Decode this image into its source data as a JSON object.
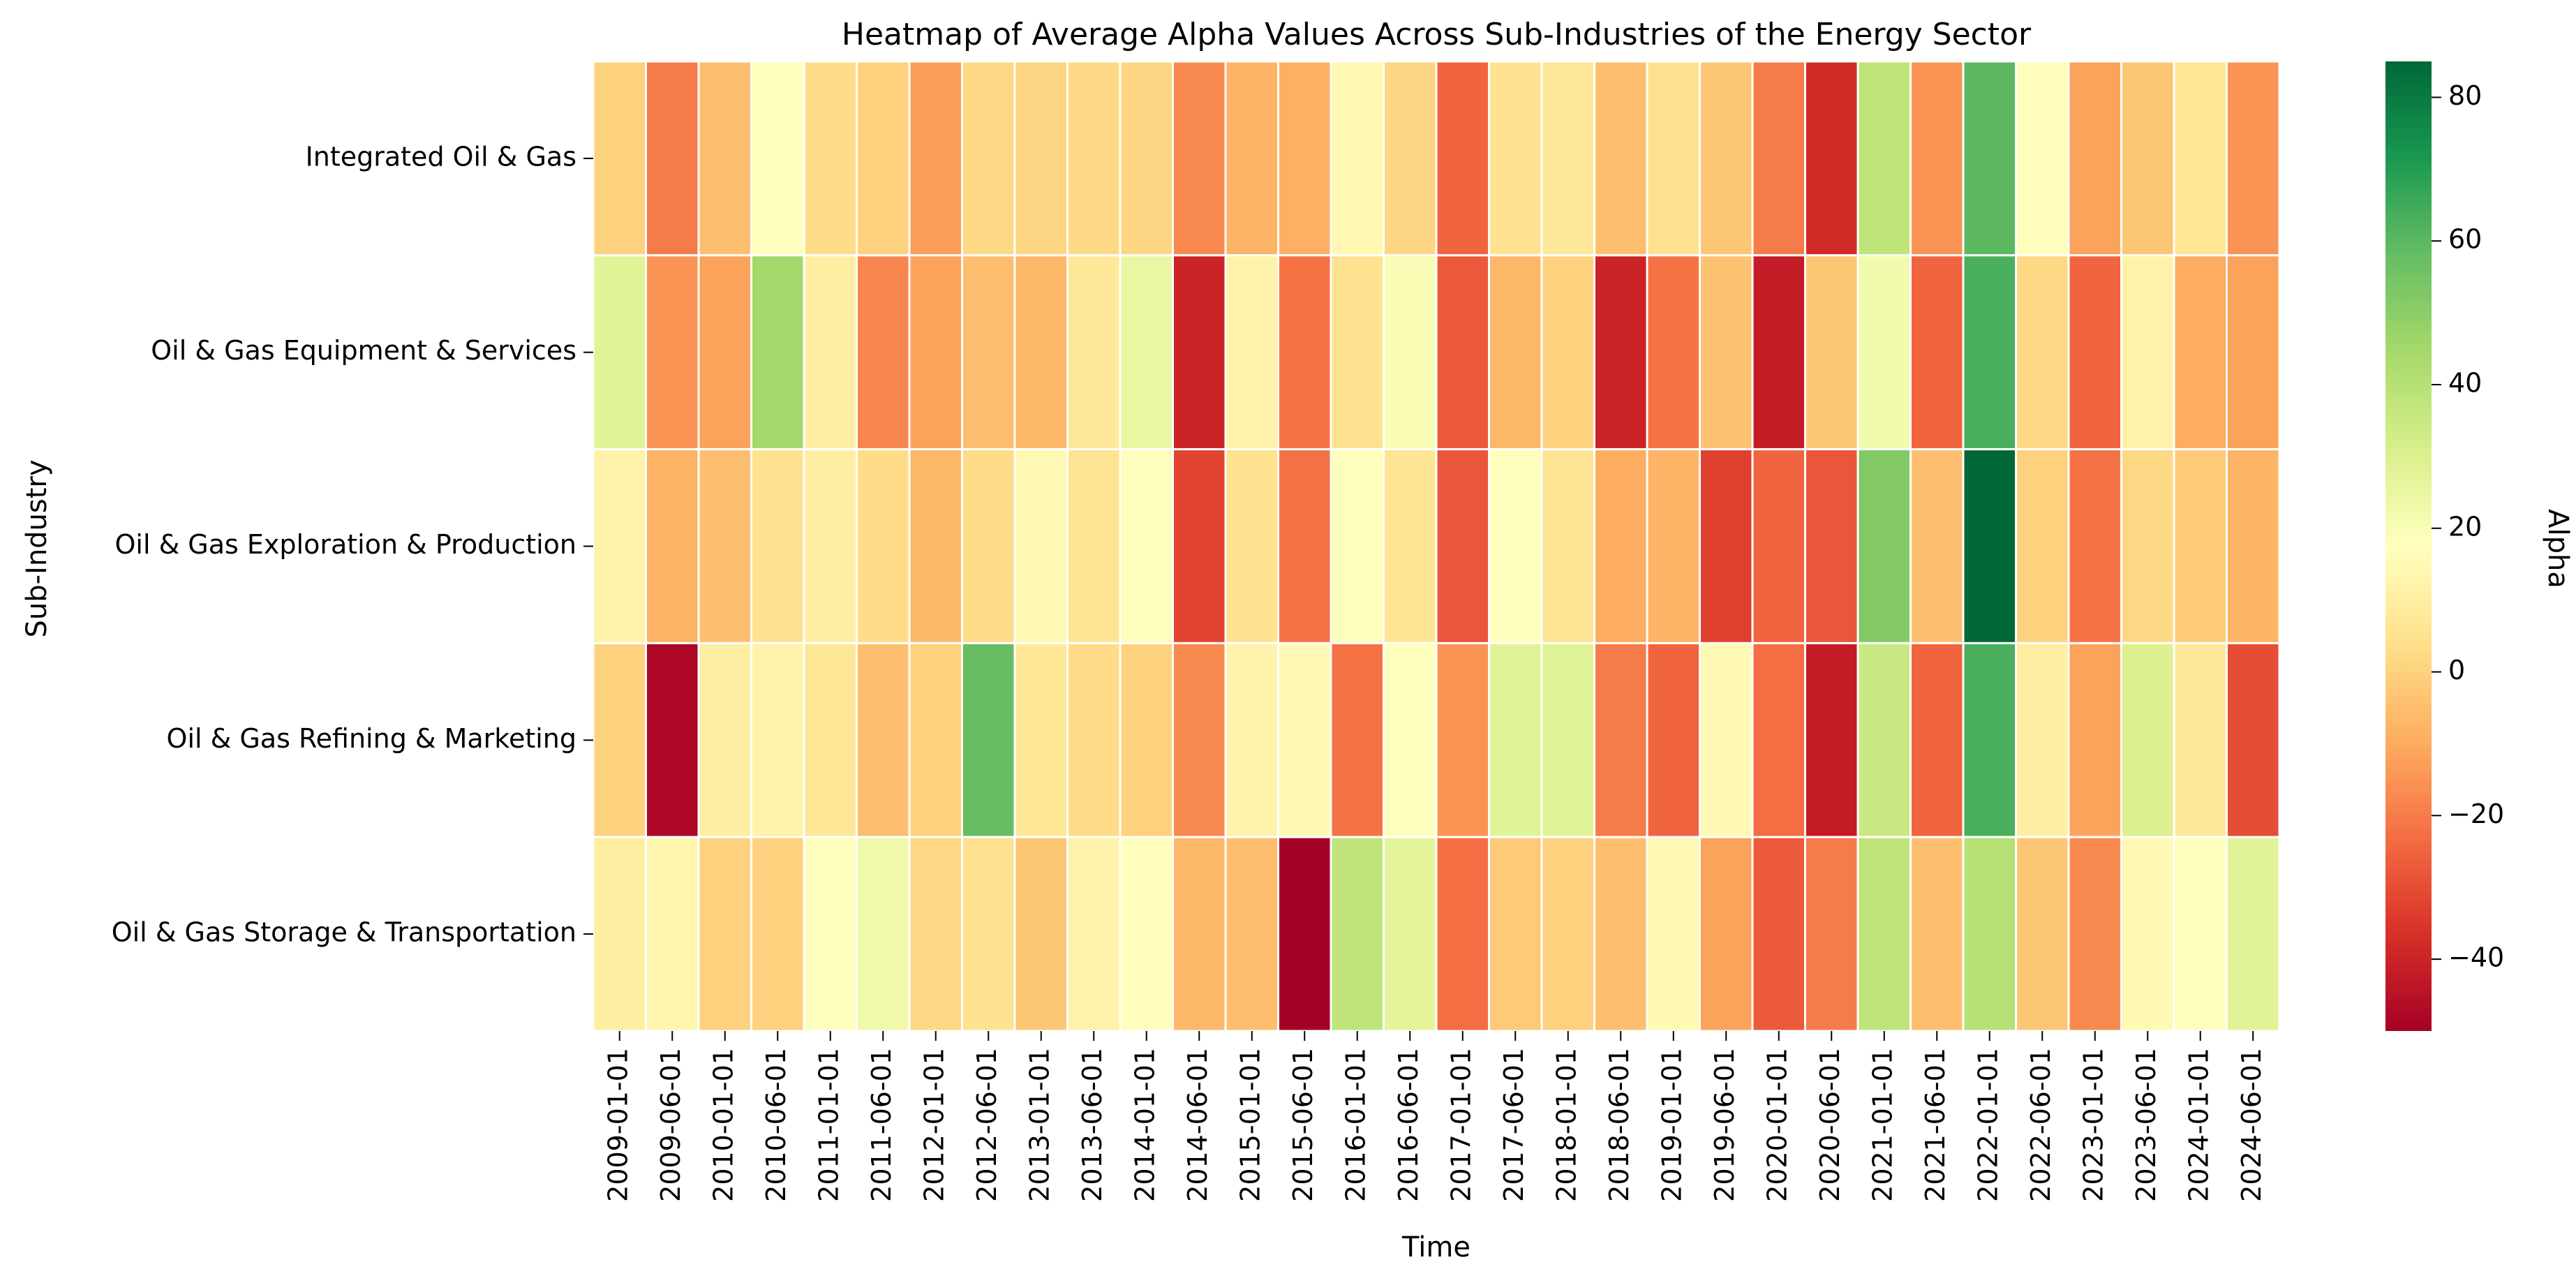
{
  "chart_data": {
    "type": "heatmap",
    "title": "Heatmap of Average Alpha Values Across Sub-Industries of the Energy Sector",
    "xlabel": "Time",
    "ylabel": "Sub-Industry",
    "colorbar_label": "Alpha",
    "colormap": "RdYlGn",
    "vmin": -50,
    "vmax": 85,
    "colorbar_ticks": [
      -40,
      -20,
      0,
      20,
      40,
      60,
      80
    ],
    "x": [
      "2009-01-01",
      "2009-06-01",
      "2010-01-01",
      "2010-06-01",
      "2011-01-01",
      "2011-06-01",
      "2012-01-01",
      "2012-06-01",
      "2013-01-01",
      "2013-06-01",
      "2014-01-01",
      "2014-06-01",
      "2015-01-01",
      "2015-06-01",
      "2016-01-01",
      "2016-06-01",
      "2017-01-01",
      "2017-06-01",
      "2018-01-01",
      "2018-06-01",
      "2019-01-01",
      "2019-06-01",
      "2020-01-01",
      "2020-06-01",
      "2021-01-01",
      "2021-06-01",
      "2022-01-01",
      "2022-06-01",
      "2023-01-01",
      "2023-06-01",
      "2024-01-01",
      "2024-06-01"
    ],
    "y": [
      "Integrated Oil & Gas",
      "Oil & Gas Equipment & Services",
      "Oil & Gas Exploration & Production",
      "Oil & Gas Refining & Marketing",
      "Oil & Gas Storage & Transportation"
    ],
    "values": [
      [
        0,
        -20,
        -5,
        18,
        3,
        0,
        -13,
        2,
        1,
        2,
        1,
        -17,
        -8,
        -9,
        14,
        1,
        -25,
        5,
        8,
        -5,
        5,
        -3,
        -20,
        -38,
        38,
        -15,
        60,
        17,
        -12,
        -3,
        7,
        -15
      ],
      [
        28,
        -15,
        -12,
        45,
        10,
        -18,
        -12,
        -5,
        -7,
        8,
        25,
        -40,
        12,
        -22,
        5,
        20,
        -27,
        -7,
        0,
        -40,
        -22,
        -4,
        -42,
        -3,
        22,
        -25,
        63,
        2,
        -25,
        12,
        -10,
        -12
      ],
      [
        12,
        -8,
        -5,
        5,
        10,
        3,
        -7,
        3,
        15,
        6,
        18,
        -32,
        5,
        -22,
        18,
        6,
        -28,
        18,
        6,
        -10,
        -8,
        -33,
        -25,
        -28,
        52,
        -5,
        85,
        0,
        -22,
        2,
        -2,
        -8
      ],
      [
        0,
        -48,
        10,
        12,
        7,
        -5,
        0,
        58,
        7,
        3,
        0,
        -17,
        12,
        15,
        -22,
        18,
        -15,
        28,
        28,
        -20,
        -25,
        15,
        -23,
        -42,
        35,
        -25,
        63,
        10,
        -12,
        30,
        8,
        -30
      ],
      [
        10,
        13,
        0,
        0,
        18,
        23,
        2,
        5,
        -3,
        12,
        17,
        -7,
        -5,
        -50,
        38,
        27,
        -23,
        -2,
        0,
        -5,
        15,
        -12,
        -27,
        -20,
        38,
        -5,
        40,
        -3,
        -17,
        15,
        18,
        28
      ]
    ]
  }
}
